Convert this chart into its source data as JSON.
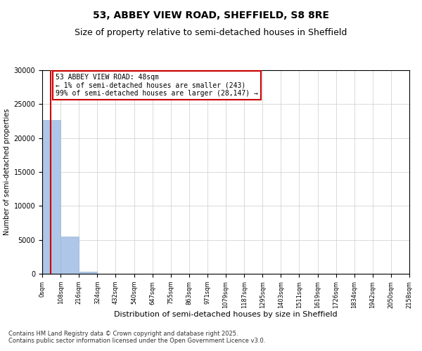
{
  "title_line1": "53, ABBEY VIEW ROAD, SHEFFIELD, S8 8RE",
  "title_line2": "Size of property relative to semi-detached houses in Sheffield",
  "xlabel": "Distribution of semi-detached houses by size in Sheffield",
  "ylabel": "Number of semi-detached properties",
  "annotation_title": "53 ABBEY VIEW ROAD: 48sqm",
  "annotation_line2": "← 1% of semi-detached houses are smaller (243)",
  "annotation_line3": "99% of semi-detached houses are larger (28,147) →",
  "footer_line1": "Contains HM Land Registry data © Crown copyright and database right 2025.",
  "footer_line2": "Contains public sector information licensed under the Open Government Licence v3.0.",
  "bar_edges": [
    0,
    108,
    216,
    324,
    432,
    540,
    647,
    755,
    863,
    971,
    1079,
    1187,
    1295,
    1403,
    1511,
    1619,
    1726,
    1834,
    1942,
    2050,
    2158
  ],
  "bar_heights": [
    22700,
    5500,
    300,
    0,
    0,
    0,
    0,
    0,
    0,
    0,
    0,
    0,
    0,
    0,
    0,
    0,
    0,
    0,
    0,
    0
  ],
  "property_size": 48,
  "bar_color": "#aec6e8",
  "bar_edgecolor": "#9ab8d8",
  "vline_color": "#cc0000",
  "vline_x": 48,
  "annotation_box_color": "#cc0000",
  "annotation_bg": "#ffffff",
  "grid_color": "#cccccc",
  "ylim": [
    0,
    30000
  ],
  "yticks": [
    0,
    5000,
    10000,
    15000,
    20000,
    25000,
    30000
  ],
  "xlim": [
    0,
    2158
  ],
  "background_color": "#ffffff",
  "title_fontsize": 10,
  "subtitle_fontsize": 9,
  "annotation_fontsize": 7,
  "footer_fontsize": 6,
  "xlabel_fontsize": 8,
  "ylabel_fontsize": 7,
  "tick_fontsize": 7,
  "xtick_fontsize": 6
}
